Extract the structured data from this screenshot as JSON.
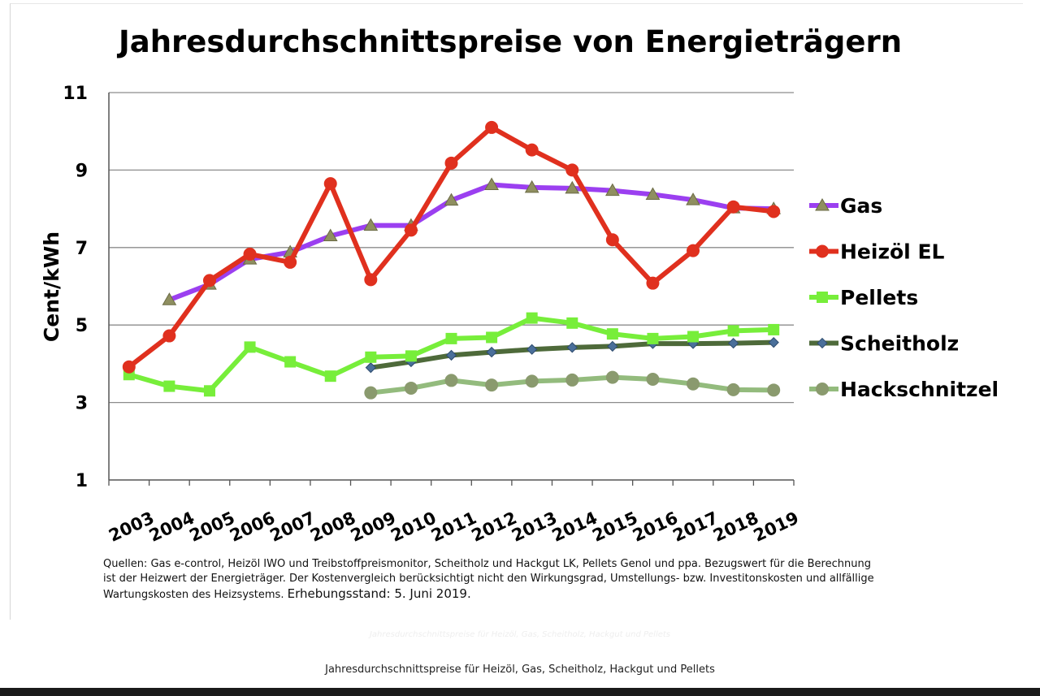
{
  "caption": "Jahresdurchschnittspreise für Heizöl, Gas, Scheitholz, Hackgut und Pellets",
  "faded_caption": "Jahresdurchschnittspreise für Heizöl, Gas, Scheitholz, Hackgut und Pellets",
  "chart_data": {
    "type": "line",
    "title": "Jahresdurchschnittspreise von Energieträgern",
    "xlabel": "",
    "ylabel": "Cent/kWh",
    "ylim": [
      1,
      11
    ],
    "yticks": [
      "1",
      "3",
      "5",
      "7",
      "9",
      "11"
    ],
    "categories": [
      "2003",
      "2004",
      "2005",
      "2006",
      "2007",
      "2008",
      "2009",
      "2010",
      "2011",
      "2012",
      "2013",
      "2014",
      "2015",
      "2016",
      "2017",
      "2018",
      "2019"
    ],
    "grid": "horizontal",
    "legend_position": "right",
    "series": [
      {
        "name": "Gas",
        "color": "#9b3ff0",
        "marker": "triangle",
        "marker_color": "#8f8f60",
        "values": [
          null,
          5.65,
          6.05,
          6.7,
          6.88,
          7.3,
          7.57,
          7.57,
          8.22,
          8.62,
          8.55,
          8.53,
          8.47,
          8.37,
          8.23,
          8.02,
          8.0
        ]
      },
      {
        "name": "Heizöl EL",
        "color": "#e0301e",
        "marker": "circle",
        "marker_color": "#e0301e",
        "values": [
          3.92,
          4.72,
          6.15,
          6.83,
          6.62,
          8.65,
          6.17,
          7.45,
          9.18,
          10.1,
          9.52,
          9.0,
          7.2,
          6.08,
          6.92,
          8.05,
          7.93
        ]
      },
      {
        "name": "Pellets",
        "color": "#77ee3a",
        "marker": "square",
        "marker_color": "#77ee3a",
        "values": [
          3.72,
          3.42,
          3.3,
          4.43,
          4.05,
          3.68,
          4.17,
          4.2,
          4.65,
          4.68,
          5.18,
          5.05,
          4.77,
          4.65,
          4.7,
          4.85,
          4.88
        ]
      },
      {
        "name": "Scheitholz",
        "color": "#4e6a3a",
        "marker": "diamond",
        "marker_color": "#4a6f9a",
        "values": [
          null,
          null,
          null,
          null,
          null,
          null,
          3.9,
          4.05,
          4.22,
          4.3,
          4.37,
          4.42,
          4.45,
          4.52,
          4.52,
          4.53,
          4.55
        ]
      },
      {
        "name": "Hackschnitzel",
        "color": "#93bb7d",
        "marker": "circle",
        "marker_color": "#8a9a6e",
        "values": [
          null,
          null,
          null,
          null,
          null,
          null,
          3.25,
          3.37,
          3.57,
          3.45,
          3.55,
          3.58,
          3.65,
          3.6,
          3.48,
          3.33,
          3.32
        ]
      }
    ],
    "sources_text": "Quellen: Gas e-control, Heizöl IWO und Treibstoffpreismonitor, Scheitholz und Hackgut LK, Pellets Genol und ppa. Bezugswert für die Berechnung ist der Heizwert der Energieträger. Der Kostenvergleich berücksichtigt nicht den Wirkungsgrad, Umstellungs- bzw. Investitonskosten und allfällige Wartungskosten des Heizsystems.",
    "sources_stand": "Erhebungsstand: 5. Juni 2019."
  }
}
